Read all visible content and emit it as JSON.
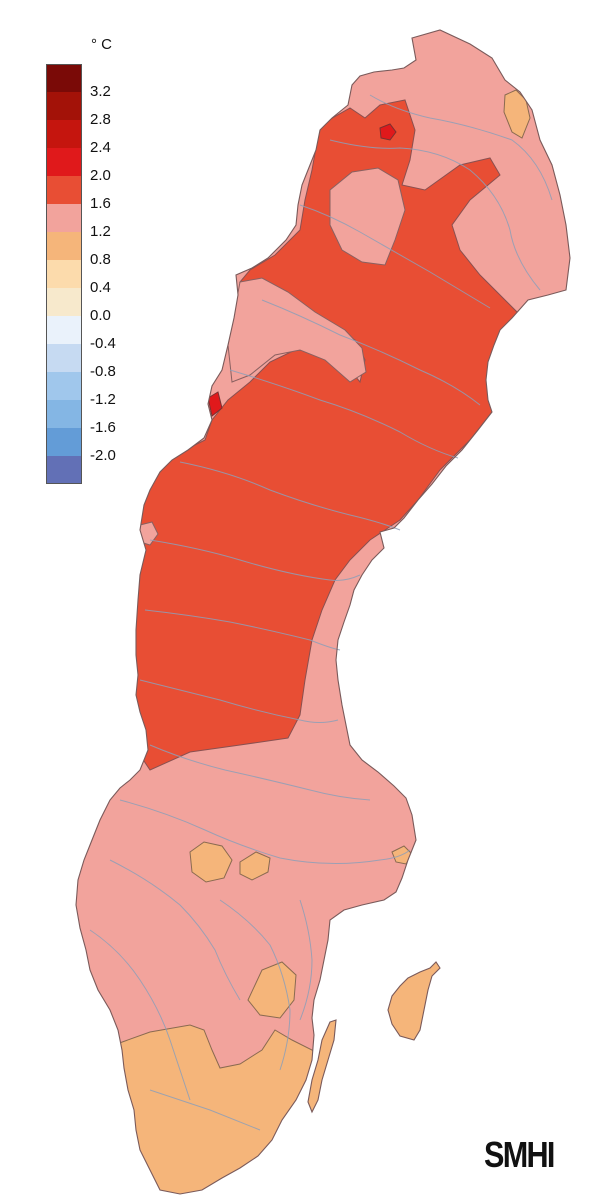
{
  "legend": {
    "unit": "° C",
    "colors": [
      "#7a0a07",
      "#a31208",
      "#c5150e",
      "#e0191b",
      "#e84e34",
      "#f2a39c",
      "#f5b57a",
      "#fcdbac",
      "#f7e9cc",
      "#eaf2fb",
      "#c6daf2",
      "#a0c7ec",
      "#84b6e4",
      "#639cd7",
      "#6270b6"
    ],
    "ticks": [
      "3.2",
      "2.8",
      "2.4",
      "2.0",
      "1.6",
      "1.2",
      "0.8",
      "0.4",
      "0.0",
      "-0.4",
      "-0.8",
      "-1.2",
      "-1.6",
      "-2.0"
    ]
  },
  "map": {
    "land_color": "#f2a39c",
    "warm_color": "#e84e34",
    "hot_color": "#e0191b",
    "cool_color": "#f5b57a",
    "river_color": "#8e9fb8",
    "border_color": "#7a5a5a"
  },
  "logo": "SMHI"
}
